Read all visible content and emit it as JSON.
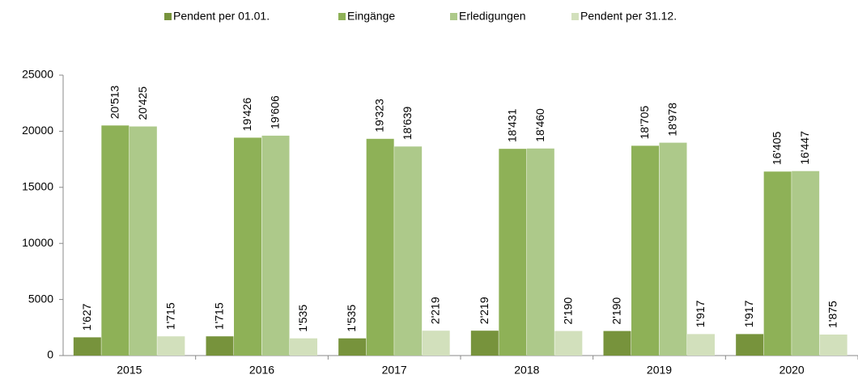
{
  "chart_data": {
    "type": "bar",
    "categories": [
      "2015",
      "2016",
      "2017",
      "2018",
      "2019",
      "2020"
    ],
    "series": [
      {
        "name": "Pendent per 01.01.",
        "color": "#77933c",
        "values": [
          1627,
          1715,
          1535,
          2219,
          2190,
          1917
        ],
        "value_labels": [
          "1'627",
          "1'715",
          "1'535",
          "2'219",
          "2'190",
          "1'917"
        ]
      },
      {
        "name": "Eingänge",
        "color": "#8eb157",
        "values": [
          20513,
          19426,
          19323,
          18431,
          18705,
          16405
        ],
        "value_labels": [
          "20'513",
          "19'426",
          "19'323",
          "18'431",
          "18'705",
          "16'405"
        ]
      },
      {
        "name": "Erledigungen",
        "color": "#adc98a",
        "values": [
          20425,
          19606,
          18639,
          18460,
          18978,
          16447
        ],
        "value_labels": [
          "20'425",
          "19'606",
          "18'639",
          "18'460",
          "18'978",
          "16'447"
        ]
      },
      {
        "name": "Pendent per 31.12.",
        "color": "#d2e0bc",
        "values": [
          1715,
          1535,
          2219,
          2190,
          1917,
          1875
        ],
        "value_labels": [
          "1'715",
          "1'535",
          "2'219",
          "2'190",
          "1'917",
          "1'875"
        ]
      }
    ],
    "ylim": [
      0,
      25000
    ],
    "yticks": [
      0,
      5000,
      10000,
      15000,
      20000,
      25000
    ],
    "grid": false,
    "legend": "top"
  }
}
